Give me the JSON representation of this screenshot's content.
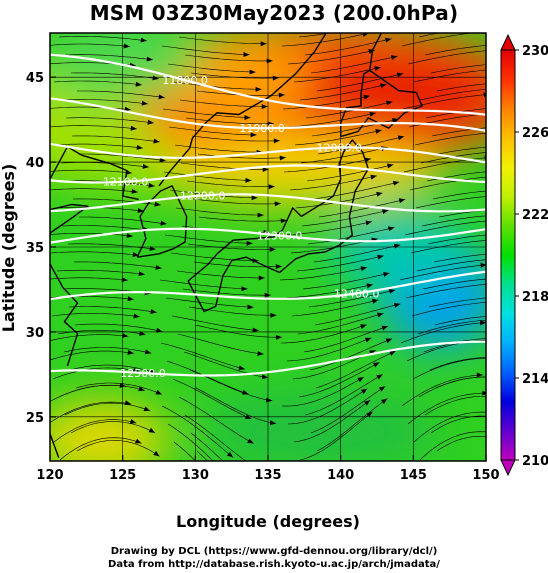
{
  "title": "MSM 03Z30May2023 (200.0hPa)",
  "xaxis": {
    "label": "Longitude (degrees)",
    "min": 120,
    "max": 150,
    "ticks": [
      "120",
      "125",
      "130",
      "135",
      "140",
      "145",
      "150"
    ]
  },
  "yaxis": {
    "label": "Latitude  (degrees)",
    "min": 22.4,
    "max": 47.6,
    "ticks": [
      "25",
      "30",
      "35",
      "40",
      "45"
    ]
  },
  "colorbar": {
    "min": 210,
    "max": 230,
    "ticks": [
      "210",
      "214",
      "218",
      "222",
      "226",
      "230"
    ],
    "colors": [
      "#c000c0",
      "#6000d0",
      "#0000e0",
      "#0060ff",
      "#00b0ff",
      "#00e0e0",
      "#00e090",
      "#00e000",
      "#60e000",
      "#c0f000",
      "#f0f000",
      "#ffc000",
      "#ff8000",
      "#ff3000",
      "#e00000"
    ]
  },
  "contours": [
    {
      "label": "11700.0",
      "lat0": 47.8,
      "slope": 0.04
    },
    {
      "label": "11800.0",
      "lat0": 45.9,
      "slope": -0.12
    },
    {
      "label": "11900.0",
      "lat0": 43.3,
      "slope": -0.06
    },
    {
      "label": "12000.0",
      "lat0": 41.0,
      "slope": -0.03
    },
    {
      "label": "12100.0",
      "lat0": 39.3,
      "slope": 0.0
    },
    {
      "label": "12200.0",
      "lat0": 37.6,
      "slope": 0.0
    },
    {
      "label": "12300.0",
      "lat0": 35.4,
      "slope": 0.02
    },
    {
      "label": "12400.0",
      "lat0": 31.6,
      "slope": 0.05
    },
    {
      "label": "12500.0",
      "lat0": 27.2,
      "slope": 0.06
    }
  ],
  "credits": [
    "Drawing by DCL (https://www.gfd-dennou.org/library/dcl/)",
    "Data from http://database.rish.kyoto-u.ac.jp/arch/jmadata/"
  ]
}
